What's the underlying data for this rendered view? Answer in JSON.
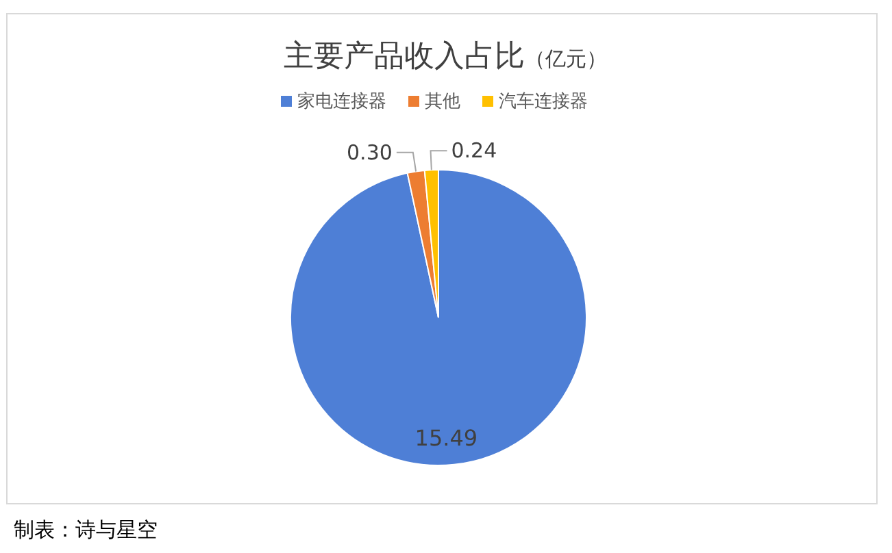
{
  "chart_data": {
    "type": "pie",
    "title": "主要产品收入占比",
    "subtitle": "（亿元）",
    "categories": [
      "家电连接器",
      "其他",
      "汽车连接器"
    ],
    "values": [
      15.49,
      0.3,
      0.24
    ],
    "colors": [
      "#4e7fd6",
      "#ed7d31",
      "#ffc000"
    ],
    "value_labels": [
      "15.49",
      "0.30",
      "0.24"
    ],
    "legend": "top",
    "annotations": [
      "制表：诗与星空"
    ]
  }
}
